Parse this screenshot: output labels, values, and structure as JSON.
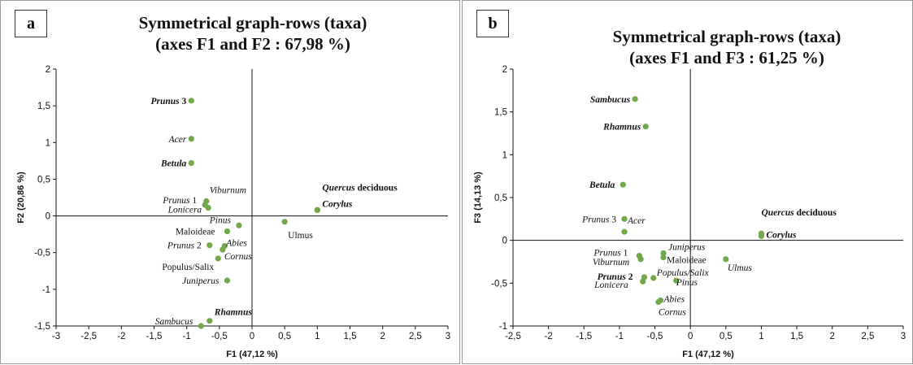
{
  "panels": [
    {
      "letter": "a"
    },
    {
      "letter": "b"
    }
  ],
  "chart_data": [
    {
      "type": "scatter",
      "title": "Symmetrical graph-rows (taxa)",
      "subtitle": "(axes F1 and F2 : 67,98 %)",
      "xlabel": "F1 (47,12 %)",
      "ylabel": "F2 (20,86 %)",
      "xlim": [
        -3,
        3
      ],
      "ylim": [
        -1.5,
        2
      ],
      "xticks": [
        -3,
        -2.5,
        -2,
        -1.5,
        -1,
        -0.5,
        0,
        0.5,
        1,
        1.5,
        2,
        2.5,
        3
      ],
      "yticks": [
        -1.5,
        -1,
        -0.5,
        0,
        0.5,
        1,
        1.5,
        2
      ],
      "xtick_labels": [
        "-3",
        "-2,5",
        "-2",
        "-1,5",
        "-1",
        "-0,5",
        "0",
        "0,5",
        "1",
        "1,5",
        "2",
        "2,5",
        "3"
      ],
      "ytick_labels": [
        "-1,5",
        "-1",
        "-0,5",
        "0",
        "0,5",
        "1",
        "1,5",
        "2"
      ],
      "marker_color": "#70a84a",
      "points": [
        {
          "label": "Prunus",
          "suffix": " 3",
          "bold": true,
          "italic": true,
          "x": -0.93,
          "y": 1.57
        },
        {
          "label": "Acer",
          "suffix": "",
          "bold": false,
          "italic": true,
          "x": -0.93,
          "y": 1.05
        },
        {
          "label": "Betula",
          "suffix": "",
          "bold": true,
          "italic": true,
          "x": -0.93,
          "y": 0.72
        },
        {
          "label": "Viburnum",
          "suffix": "",
          "bold": false,
          "italic": true,
          "x": -0.7,
          "y": 0.2
        },
        {
          "label": "Prunus",
          "suffix": " 1",
          "bold": false,
          "italic": true,
          "x": -0.72,
          "y": 0.15
        },
        {
          "label": "Lonicera",
          "suffix": "",
          "bold": false,
          "italic": true,
          "x": -0.67,
          "y": 0.11
        },
        {
          "label": "Quercus",
          "suffix": " deciduous",
          "bold": true,
          "italic": true,
          "suffix_italic": false,
          "x": 1.0,
          "y": 0.08
        },
        {
          "label": "Corylus",
          "suffix": "",
          "bold": true,
          "italic": true,
          "x": 1.0,
          "y": 0.08
        },
        {
          "label": "Ulmus",
          "suffix": "",
          "bold": false,
          "italic": false,
          "x": 0.5,
          "y": -0.08
        },
        {
          "label": "Pinus",
          "suffix": "",
          "bold": false,
          "italic": true,
          "x": -0.2,
          "y": -0.13
        },
        {
          "label": "Maloideae",
          "suffix": "",
          "bold": false,
          "italic": false,
          "x": -0.38,
          "y": -0.21
        },
        {
          "label": "Prunus",
          "suffix": " 2",
          "bold": false,
          "italic": true,
          "x": -0.65,
          "y": -0.4
        },
        {
          "label": "Abies",
          "suffix": "",
          "bold": false,
          "italic": true,
          "x": -0.42,
          "y": -0.41
        },
        {
          "label": "Cornus",
          "suffix": "",
          "bold": false,
          "italic": true,
          "x": -0.45,
          "y": -0.46
        },
        {
          "label": "Populus/Salix",
          "suffix": "",
          "bold": false,
          "italic": false,
          "x": -0.52,
          "y": -0.58
        },
        {
          "label": "Juniperus",
          "suffix": "",
          "bold": false,
          "italic": true,
          "x": -0.38,
          "y": -0.88
        },
        {
          "label": "Rhamnus",
          "suffix": "",
          "bold": true,
          "italic": true,
          "x": -0.65,
          "y": -1.43
        },
        {
          "label": "Sambucus",
          "suffix": "",
          "bold": false,
          "italic": true,
          "x": -0.78,
          "y": -1.5
        }
      ]
    },
    {
      "type": "scatter",
      "title": "Symmetrical graph-rows (taxa)",
      "subtitle": "(axes F1 and F3 : 61,25 %)",
      "xlabel": "F1 (47,12 %)",
      "ylabel": "F3 (14,13 %)",
      "xlim": [
        -2.5,
        3
      ],
      "ylim": [
        -1,
        2
      ],
      "xticks": [
        -2.5,
        -2,
        -1.5,
        -1,
        -0.5,
        0,
        0.5,
        1,
        1.5,
        2,
        2.5,
        3
      ],
      "yticks": [
        -1,
        -0.5,
        0,
        0.5,
        1,
        1.5,
        2
      ],
      "xtick_labels": [
        "-2,5",
        "-2",
        "-1,5",
        "-1",
        "-0,5",
        "0",
        "0,5",
        "1",
        "1,5",
        "2",
        "2,5",
        "3"
      ],
      "ytick_labels": [
        "-1",
        "-0,5",
        "0",
        "0,5",
        "1",
        "1,5",
        "2"
      ],
      "marker_color": "#70a84a",
      "points": [
        {
          "label": "Sambucus",
          "suffix": "",
          "bold": true,
          "italic": true,
          "x": -0.78,
          "y": 1.65
        },
        {
          "label": "Rhamnus",
          "suffix": "",
          "bold": true,
          "italic": true,
          "x": -0.63,
          "y": 1.33
        },
        {
          "label": "Betula",
          "suffix": "",
          "bold": true,
          "italic": true,
          "x": -0.95,
          "y": 0.65
        },
        {
          "label": "Prunus",
          "suffix": " 3",
          "bold": false,
          "italic": true,
          "x": -0.93,
          "y": 0.25
        },
        {
          "label": "Acer",
          "suffix": "",
          "bold": false,
          "italic": true,
          "x": -0.93,
          "y": 0.1
        },
        {
          "label": "Quercus",
          "suffix": " deciduous",
          "bold": true,
          "italic": true,
          "suffix_italic": false,
          "x": 1.0,
          "y": 0.08
        },
        {
          "label": "Corylus",
          "suffix": "",
          "bold": true,
          "italic": true,
          "x": 1.0,
          "y": 0.05
        },
        {
          "label": "Juniperus",
          "suffix": "",
          "bold": false,
          "italic": true,
          "x": -0.38,
          "y": -0.15
        },
        {
          "label": "Maloideae",
          "suffix": "",
          "bold": false,
          "italic": false,
          "x": -0.38,
          "y": -0.2
        },
        {
          "label": "Ulmus",
          "suffix": "",
          "bold": false,
          "italic": true,
          "x": 0.5,
          "y": -0.22
        },
        {
          "label": "Prunus",
          "suffix": " 1",
          "bold": false,
          "italic": true,
          "x": -0.72,
          "y": -0.18
        },
        {
          "label": "Viburnum",
          "suffix": "",
          "bold": false,
          "italic": true,
          "x": -0.7,
          "y": -0.22
        },
        {
          "label": "Prunus",
          "suffix": " 2",
          "bold": true,
          "italic": true,
          "x": -0.65,
          "y": -0.43
        },
        {
          "label": "Populus/Salix",
          "suffix": "",
          "bold": false,
          "italic": true,
          "x": -0.52,
          "y": -0.44
        },
        {
          "label": "Pinus",
          "suffix": "",
          "bold": false,
          "italic": true,
          "x": -0.2,
          "y": -0.47
        },
        {
          "label": "Lonicera",
          "suffix": "",
          "bold": false,
          "italic": true,
          "x": -0.67,
          "y": -0.48
        },
        {
          "label": "Abies",
          "suffix": "",
          "bold": false,
          "italic": true,
          "x": -0.42,
          "y": -0.7
        },
        {
          "label": "Cornus",
          "suffix": "",
          "bold": false,
          "italic": true,
          "x": -0.45,
          "y": -0.72
        }
      ]
    }
  ]
}
